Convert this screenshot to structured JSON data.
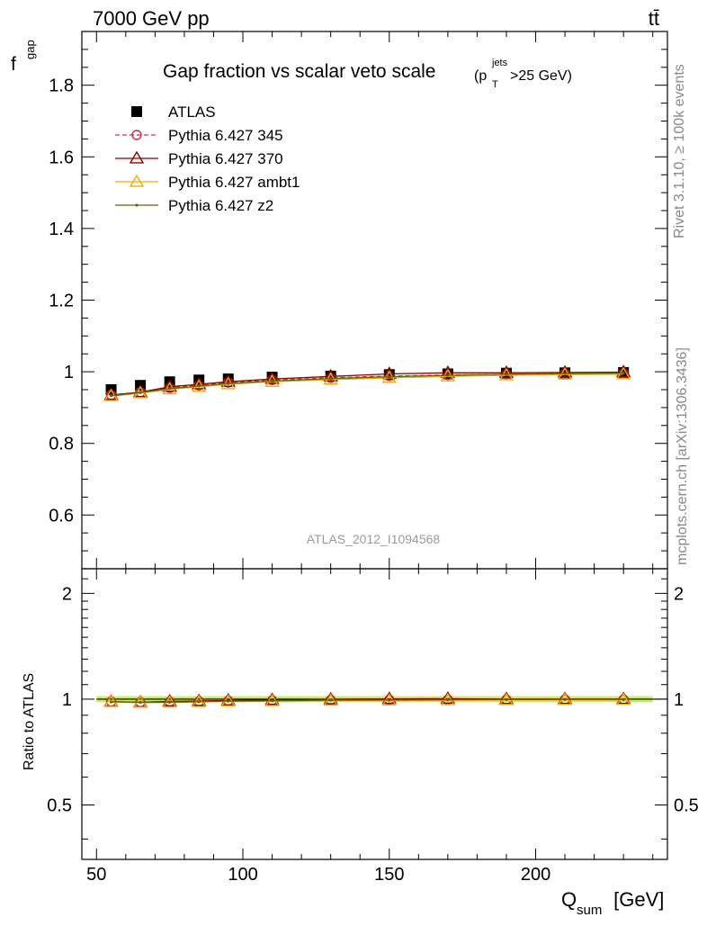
{
  "header": {
    "left": "7000 GeV pp",
    "right": "tt̄"
  },
  "side_texts": {
    "rivet": "Rivet 3.1.10, ≥ 100k events",
    "mcplots": "mcplots.cern.ch [arXiv:1306.3436]"
  },
  "chart_data": [
    {
      "type": "scatter",
      "panel": "main",
      "title": "Gap fraction vs scalar veto scale",
      "title_cut": {
        "pre": "(p",
        "sup": "jets",
        "sub": "T",
        "post": ">25 GeV)"
      },
      "ylabel": {
        "main": "f",
        "sub": "gap"
      },
      "watermark": "ATLAS_2012_I1094568",
      "xlim": [
        45,
        245
      ],
      "ylim": [
        0.45,
        1.95
      ],
      "grid": false,
      "legend_position": "top-left",
      "x": [
        55,
        65,
        75,
        85,
        95,
        110,
        130,
        150,
        170,
        190,
        210,
        230
      ],
      "y_ticks": [
        0.6,
        0.8,
        1,
        1.2,
        1.4,
        1.6,
        1.8
      ],
      "y_tick_labels": [
        "0.6",
        "0.8",
        "1",
        "1.2",
        "1.4",
        "1.6",
        "1.8"
      ],
      "series": [
        {
          "name": "ATLAS",
          "marker": "square",
          "color": "#000000",
          "line": "none",
          "values": [
            0.95,
            0.962,
            0.972,
            0.977,
            0.98,
            0.985,
            0.988,
            0.992,
            0.994,
            0.996,
            0.997,
            0.998
          ]
        },
        {
          "name": "Pythia 6.427 345",
          "marker": "circle-open",
          "color": "#c0304a",
          "line": "dashed",
          "values": [
            0.935,
            0.943,
            0.955,
            0.962,
            0.97,
            0.977,
            0.983,
            0.988,
            0.991,
            0.993,
            0.995,
            0.996
          ]
        },
        {
          "name": "Pythia 6.427 370",
          "marker": "triangle-open",
          "color": "#8b0000",
          "line": "solid",
          "values": [
            0.935,
            0.943,
            0.958,
            0.965,
            0.972,
            0.98,
            0.987,
            0.994,
            0.997,
            0.997,
            0.998,
            0.999
          ]
        },
        {
          "name": "Pythia 6.427 ambt1",
          "marker": "triangle-open",
          "color": "#f4a90e",
          "line": "solid",
          "values": [
            0.932,
            0.94,
            0.951,
            0.958,
            0.965,
            0.972,
            0.978,
            0.983,
            0.987,
            0.99,
            0.992,
            0.993
          ]
        },
        {
          "name": "Pythia 6.427 z2",
          "marker": "dot",
          "color": "#5a6b0a",
          "line": "solid",
          "values": [
            0.933,
            0.942,
            0.953,
            0.96,
            0.967,
            0.974,
            0.981,
            0.986,
            0.99,
            0.993,
            0.995,
            0.996
          ]
        }
      ]
    },
    {
      "type": "scatter",
      "panel": "ratio",
      "ylabel": "Ratio to ATLAS",
      "xlabel": {
        "main": "Q",
        "sub": "sum",
        "post": " [GeV]"
      },
      "xlim": [
        45,
        245
      ],
      "ylim": [
        0.35,
        2.35
      ],
      "y_scale": "log",
      "grid": false,
      "x_ticks": [
        50,
        100,
        150,
        200
      ],
      "x_tick_labels": [
        "50",
        "100",
        "150",
        "200"
      ],
      "y_ticks": [
        0.5,
        1,
        2
      ],
      "y_tick_labels": [
        "0.5",
        "1",
        "2"
      ],
      "band": {
        "color": "#b8ea3a",
        "half_width": 0.02
      },
      "x": [
        55,
        65,
        75,
        85,
        95,
        110,
        130,
        150,
        170,
        190,
        210,
        230
      ],
      "series": [
        {
          "name": "Pythia 6.427 345",
          "color": "#c0304a",
          "values": [
            0.984,
            0.98,
            0.983,
            0.985,
            0.99,
            0.992,
            0.995,
            0.996,
            0.997,
            0.997,
            0.998,
            0.998
          ]
        },
        {
          "name": "Pythia 6.427 370",
          "color": "#8b0000",
          "values": [
            0.984,
            0.98,
            0.986,
            0.988,
            0.992,
            0.995,
            0.999,
            1.002,
            1.003,
            1.001,
            1.001,
            1.001
          ]
        },
        {
          "name": "Pythia 6.427 ambt1",
          "color": "#f4a90e",
          "values": [
            0.981,
            0.977,
            0.978,
            0.981,
            0.985,
            0.987,
            0.99,
            0.991,
            0.993,
            0.994,
            0.995,
            0.995
          ]
        },
        {
          "name": "Pythia 6.427 z2",
          "color": "#5a6b0a",
          "values": [
            0.982,
            0.979,
            0.98,
            0.983,
            0.987,
            0.989,
            0.993,
            0.994,
            0.996,
            0.997,
            0.998,
            0.998
          ]
        }
      ]
    }
  ]
}
